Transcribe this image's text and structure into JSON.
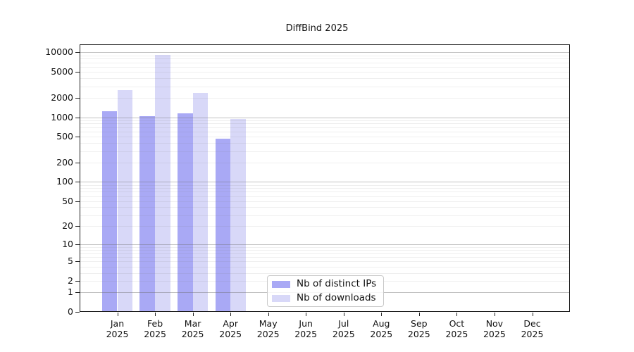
{
  "chart_data": {
    "type": "bar",
    "title": "DiffBind 2025",
    "categories": [
      "Jan",
      "Feb",
      "Mar",
      "Apr",
      "May",
      "Jun",
      "Jul",
      "Aug",
      "Sep",
      "Oct",
      "Nov",
      "Dec"
    ],
    "year": "2025",
    "series": [
      {
        "name": "Nb of distinct IPs",
        "color": "#a9a9f5",
        "values": [
          1240,
          1040,
          1150,
          467,
          null,
          null,
          null,
          null,
          null,
          null,
          null,
          null
        ]
      },
      {
        "name": "Nb of downloads",
        "color": "#d8d8f8",
        "values": [
          2620,
          9140,
          2370,
          940,
          null,
          null,
          null,
          null,
          null,
          null,
          null,
          null
        ]
      }
    ],
    "y_ticks": [
      0,
      1,
      2,
      5,
      10,
      20,
      50,
      100,
      200,
      500,
      1000,
      2000,
      5000,
      10000
    ],
    "y_scale": "log10(value+1)",
    "ylim": [
      0,
      13300
    ],
    "grid": "horizontal",
    "legend_position": "bottom-center",
    "background_color": "#ffffff"
  }
}
